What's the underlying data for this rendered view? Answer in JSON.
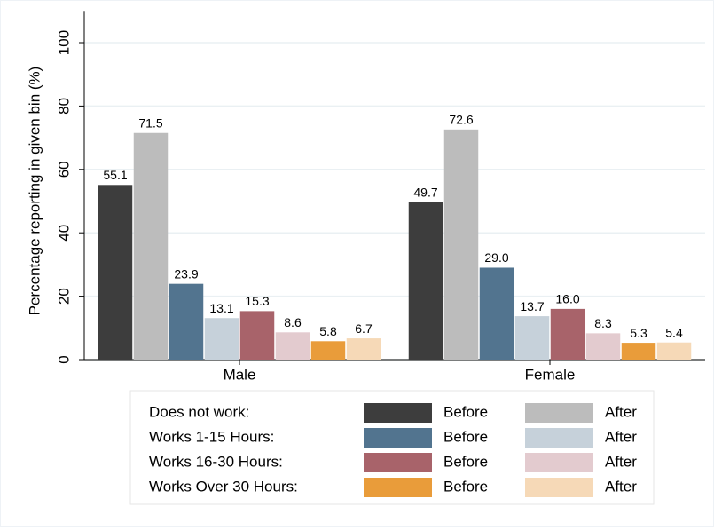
{
  "chart_data": {
    "type": "bar",
    "ylabel": "Percentage reporting in given bin (%)",
    "categories": [
      "Male",
      "Female"
    ],
    "ylim": [
      0,
      110
    ],
    "yticks": [
      0,
      20,
      40,
      60,
      80,
      100
    ],
    "grid": true,
    "groups": [
      {
        "label": "Does not work:",
        "series": [
          {
            "name": "Before",
            "color": "#3d3d3d",
            "values": [
              55.1,
              49.7
            ]
          },
          {
            "name": "After",
            "color": "#bcbcbc",
            "values": [
              71.5,
              72.6
            ]
          }
        ]
      },
      {
        "label": "Works 1-15 Hours:",
        "series": [
          {
            "name": "Before",
            "color": "#52748f",
            "values": [
              23.9,
              29.0
            ],
            "value_labels": [
              "23.9",
              "29.0"
            ]
          },
          {
            "name": "After",
            "color": "#c6d1da",
            "values": [
              13.1,
              13.7
            ]
          }
        ]
      },
      {
        "label": "Works 16-30 Hours:",
        "series": [
          {
            "name": "Before",
            "color": "#a8636a",
            "values": [
              15.3,
              16.0
            ],
            "value_labels": [
              "15.3",
              "16.0"
            ]
          },
          {
            "name": "After",
            "color": "#e3cbcf",
            "values": [
              8.6,
              8.3
            ]
          }
        ]
      },
      {
        "label": "Works Over 30 Hours:",
        "series": [
          {
            "name": "Before",
            "color": "#e99c3a",
            "values": [
              5.8,
              5.3
            ]
          },
          {
            "name": "After",
            "color": "#f6d9b7",
            "values": [
              6.7,
              5.4
            ]
          }
        ]
      }
    ]
  }
}
